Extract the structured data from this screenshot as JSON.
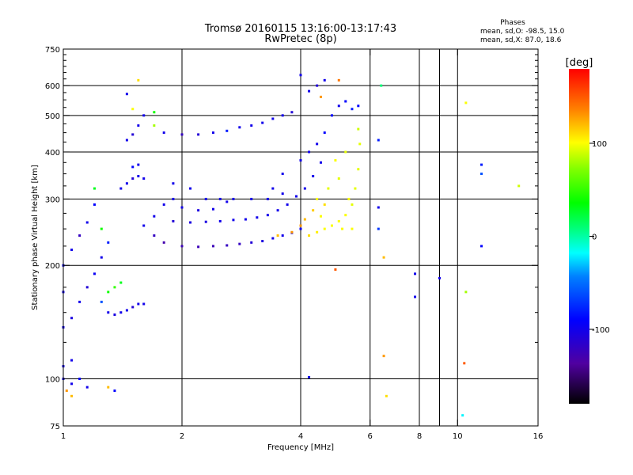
{
  "title": {
    "line1": "Tromsø 20160115 13:16:00-13:17:43",
    "line2": "RwPretec (8p)"
  },
  "stats": {
    "heading": "Phases",
    "o_line": "mean, sd,O: -98.5, 15.0",
    "x_line": "mean, sd,X:  87.0, 18.6"
  },
  "colorbar": {
    "unit": "[deg]",
    "ticks": [
      {
        "value": 100,
        "label": "100"
      },
      {
        "value": 0,
        "label": "0"
      },
      {
        "value": -100,
        "label": "-100"
      }
    ],
    "range": [
      -180,
      180
    ]
  },
  "chart_data": {
    "type": "scatter",
    "title": "Tromsø 20160115 13:16:00-13:17:43",
    "subtitle": "RwPretec (8p)",
    "xlabel": "Frequency [MHz]",
    "ylabel": "Stationary phase Virtual Height [km]",
    "xscale": "log",
    "yscale": "log",
    "xlim": [
      1,
      16
    ],
    "ylim": [
      75,
      750
    ],
    "grid": true,
    "xticks": [
      {
        "value": 1,
        "label": "1"
      },
      {
        "value": 2,
        "label": "2"
      },
      {
        "value": 4,
        "label": "4"
      },
      {
        "value": 6,
        "label": "6"
      },
      {
        "value": 8,
        "label": "8"
      },
      {
        "value": 10,
        "label": "10"
      },
      {
        "value": 16,
        "label": "16"
      }
    ],
    "xgrid": [
      2,
      4,
      6,
      8,
      10
    ],
    "xminor": [
      9
    ],
    "yticks": [
      {
        "value": 75,
        "label": "75"
      },
      {
        "value": 100,
        "label": "100"
      },
      {
        "value": 200,
        "label": "200"
      },
      {
        "value": 300,
        "label": "300"
      },
      {
        "value": 400,
        "label": "400"
      },
      {
        "value": 500,
        "label": "500"
      },
      {
        "value": 600,
        "label": "600"
      },
      {
        "value": 750,
        "label": "750"
      }
    ],
    "ygrid": [
      100,
      200,
      300,
      400,
      500,
      600
    ],
    "yminor": [
      125,
      150,
      175,
      225,
      250,
      275,
      325,
      350,
      375,
      425,
      450,
      475,
      525,
      550,
      575,
      625,
      650,
      675,
      700,
      725
    ],
    "color_scale": "phase [deg]",
    "series": [
      {
        "x": 1.0,
        "y": 137,
        "phase": -100
      },
      {
        "x": 1.05,
        "y": 145,
        "phase": -105
      },
      {
        "x": 1.1,
        "y": 160,
        "phase": -100
      },
      {
        "x": 1.15,
        "y": 175,
        "phase": -110
      },
      {
        "x": 1.2,
        "y": 190,
        "phase": -95
      },
      {
        "x": 1.25,
        "y": 210,
        "phase": -100
      },
      {
        "x": 1.0,
        "y": 170,
        "phase": -100
      },
      {
        "x": 1.0,
        "y": 200,
        "phase": -95
      },
      {
        "x": 1.05,
        "y": 220,
        "phase": -100
      },
      {
        "x": 1.1,
        "y": 240,
        "phase": -120
      },
      {
        "x": 1.15,
        "y": 260,
        "phase": -100
      },
      {
        "x": 1.2,
        "y": 290,
        "phase": -90
      },
      {
        "x": 1.25,
        "y": 160,
        "phase": -60
      },
      {
        "x": 1.3,
        "y": 150,
        "phase": -100
      },
      {
        "x": 1.35,
        "y": 148,
        "phase": -105
      },
      {
        "x": 1.4,
        "y": 150,
        "phase": -100
      },
      {
        "x": 1.45,
        "y": 152,
        "phase": -100
      },
      {
        "x": 1.5,
        "y": 155,
        "phase": -110
      },
      {
        "x": 1.55,
        "y": 158,
        "phase": -100
      },
      {
        "x": 1.6,
        "y": 158,
        "phase": -100
      },
      {
        "x": 1.3,
        "y": 170,
        "phase": 40
      },
      {
        "x": 1.35,
        "y": 175,
        "phase": 50
      },
      {
        "x": 1.4,
        "y": 180,
        "phase": 30
      },
      {
        "x": 1.2,
        "y": 320,
        "phase": 30
      },
      {
        "x": 1.25,
        "y": 250,
        "phase": 40
      },
      {
        "x": 1.3,
        "y": 230,
        "phase": -80
      },
      {
        "x": 1.4,
        "y": 320,
        "phase": -100
      },
      {
        "x": 1.45,
        "y": 330,
        "phase": -100
      },
      {
        "x": 1.5,
        "y": 340,
        "phase": -110
      },
      {
        "x": 1.55,
        "y": 345,
        "phase": -100
      },
      {
        "x": 1.6,
        "y": 340,
        "phase": -100
      },
      {
        "x": 1.5,
        "y": 365,
        "phase": -90
      },
      {
        "x": 1.55,
        "y": 370,
        "phase": -100
      },
      {
        "x": 1.45,
        "y": 430,
        "phase": -100
      },
      {
        "x": 1.5,
        "y": 445,
        "phase": -110
      },
      {
        "x": 1.55,
        "y": 470,
        "phase": -100
      },
      {
        "x": 1.6,
        "y": 500,
        "phase": -100
      },
      {
        "x": 1.7,
        "y": 510,
        "phase": 40
      },
      {
        "x": 1.5,
        "y": 520,
        "phase": 100
      },
      {
        "x": 1.55,
        "y": 620,
        "phase": 110
      },
      {
        "x": 1.45,
        "y": 570,
        "phase": -100
      },
      {
        "x": 1.6,
        "y": 255,
        "phase": -100
      },
      {
        "x": 1.7,
        "y": 240,
        "phase": -120
      },
      {
        "x": 1.8,
        "y": 230,
        "phase": -130
      },
      {
        "x": 2.0,
        "y": 225,
        "phase": -125
      },
      {
        "x": 2.2,
        "y": 224,
        "phase": -125
      },
      {
        "x": 2.4,
        "y": 225,
        "phase": -125
      },
      {
        "x": 2.6,
        "y": 226,
        "phase": -120
      },
      {
        "x": 2.8,
        "y": 228,
        "phase": -120
      },
      {
        "x": 3.0,
        "y": 230,
        "phase": -110
      },
      {
        "x": 3.2,
        "y": 232,
        "phase": -105
      },
      {
        "x": 3.4,
        "y": 236,
        "phase": -100
      },
      {
        "x": 3.6,
        "y": 240,
        "phase": -100
      },
      {
        "x": 3.8,
        "y": 244,
        "phase": -100
      },
      {
        "x": 4.0,
        "y": 250,
        "phase": -100
      },
      {
        "x": 1.7,
        "y": 270,
        "phase": -100
      },
      {
        "x": 1.9,
        "y": 262,
        "phase": -110
      },
      {
        "x": 2.1,
        "y": 260,
        "phase": -105
      },
      {
        "x": 2.3,
        "y": 261,
        "phase": -105
      },
      {
        "x": 2.5,
        "y": 262,
        "phase": -100
      },
      {
        "x": 2.7,
        "y": 264,
        "phase": -100
      },
      {
        "x": 2.9,
        "y": 265,
        "phase": -100
      },
      {
        "x": 3.1,
        "y": 268,
        "phase": -100
      },
      {
        "x": 3.3,
        "y": 272,
        "phase": -100
      },
      {
        "x": 3.5,
        "y": 280,
        "phase": -100
      },
      {
        "x": 3.7,
        "y": 290,
        "phase": -100
      },
      {
        "x": 3.9,
        "y": 305,
        "phase": -100
      },
      {
        "x": 4.1,
        "y": 320,
        "phase": -100
      },
      {
        "x": 4.3,
        "y": 345,
        "phase": -100
      },
      {
        "x": 4.5,
        "y": 375,
        "phase": -100
      },
      {
        "x": 1.8,
        "y": 290,
        "phase": -100
      },
      {
        "x": 2.0,
        "y": 285,
        "phase": -100
      },
      {
        "x": 2.2,
        "y": 280,
        "phase": -105
      },
      {
        "x": 2.4,
        "y": 282,
        "phase": -100
      },
      {
        "x": 2.6,
        "y": 295,
        "phase": -100
      },
      {
        "x": 3.3,
        "y": 300,
        "phase": -100
      },
      {
        "x": 3.6,
        "y": 310,
        "phase": -100
      },
      {
        "x": 4.2,
        "y": 240,
        "phase": 110
      },
      {
        "x": 4.4,
        "y": 245,
        "phase": 105
      },
      {
        "x": 4.6,
        "y": 250,
        "phase": 100
      },
      {
        "x": 4.8,
        "y": 255,
        "phase": 100
      },
      {
        "x": 5.0,
        "y": 262,
        "phase": 100
      },
      {
        "x": 5.2,
        "y": 272,
        "phase": 100
      },
      {
        "x": 5.4,
        "y": 290,
        "phase": 95
      },
      {
        "x": 5.5,
        "y": 320,
        "phase": 95
      },
      {
        "x": 5.6,
        "y": 360,
        "phase": 95
      },
      {
        "x": 5.65,
        "y": 420,
        "phase": 95
      },
      {
        "x": 5.6,
        "y": 460,
        "phase": 90
      },
      {
        "x": 4.4,
        "y": 300,
        "phase": 100
      },
      {
        "x": 4.7,
        "y": 320,
        "phase": 95
      },
      {
        "x": 5.0,
        "y": 340,
        "phase": 95
      },
      {
        "x": 5.2,
        "y": 400,
        "phase": 95
      },
      {
        "x": 4.9,
        "y": 380,
        "phase": 100
      },
      {
        "x": 5.3,
        "y": 300,
        "phase": 100
      },
      {
        "x": 4.6,
        "y": 290,
        "phase": 110
      },
      {
        "x": 4.0,
        "y": 255,
        "phase": 130
      },
      {
        "x": 4.1,
        "y": 265,
        "phase": 120
      },
      {
        "x": 4.3,
        "y": 280,
        "phase": 115
      },
      {
        "x": 4.5,
        "y": 270,
        "phase": 100
      },
      {
        "x": 5.1,
        "y": 250,
        "phase": 100
      },
      {
        "x": 5.4,
        "y": 250,
        "phase": 100
      },
      {
        "x": 3.5,
        "y": 240,
        "phase": 120
      },
      {
        "x": 3.8,
        "y": 245,
        "phase": 130
      },
      {
        "x": 4.4,
        "y": 420,
        "phase": -100
      },
      {
        "x": 4.6,
        "y": 450,
        "phase": -90
      },
      {
        "x": 4.8,
        "y": 500,
        "phase": -90
      },
      {
        "x": 5.0,
        "y": 530,
        "phase": -100
      },
      {
        "x": 5.2,
        "y": 545,
        "phase": -90
      },
      {
        "x": 5.4,
        "y": 520,
        "phase": -80
      },
      {
        "x": 5.6,
        "y": 530,
        "phase": -90
      },
      {
        "x": 4.2,
        "y": 400,
        "phase": -100
      },
      {
        "x": 4.0,
        "y": 380,
        "phase": -100
      },
      {
        "x": 3.6,
        "y": 350,
        "phase": -100
      },
      {
        "x": 3.4,
        "y": 320,
        "phase": -100
      },
      {
        "x": 3.0,
        "y": 300,
        "phase": -100
      },
      {
        "x": 4.2,
        "y": 580,
        "phase": -100
      },
      {
        "x": 4.4,
        "y": 600,
        "phase": -110
      },
      {
        "x": 4.6,
        "y": 620,
        "phase": -100
      },
      {
        "x": 4.0,
        "y": 640,
        "phase": -100
      },
      {
        "x": 4.5,
        "y": 560,
        "phase": 130
      },
      {
        "x": 5.0,
        "y": 620,
        "phase": 140
      },
      {
        "x": 1.8,
        "y": 450,
        "phase": -100
      },
      {
        "x": 2.0,
        "y": 445,
        "phase": -120
      },
      {
        "x": 2.2,
        "y": 445,
        "phase": -110
      },
      {
        "x": 2.4,
        "y": 450,
        "phase": -100
      },
      {
        "x": 2.6,
        "y": 455,
        "phase": -80
      },
      {
        "x": 2.8,
        "y": 465,
        "phase": -100
      },
      {
        "x": 3.0,
        "y": 470,
        "phase": -100
      },
      {
        "x": 3.2,
        "y": 478,
        "phase": -100
      },
      {
        "x": 3.4,
        "y": 490,
        "phase": -100
      },
      {
        "x": 3.6,
        "y": 500,
        "phase": -100
      },
      {
        "x": 3.8,
        "y": 510,
        "phase": -110
      },
      {
        "x": 1.7,
        "y": 470,
        "phase": 80
      },
      {
        "x": 1.9,
        "y": 300,
        "phase": -100
      },
      {
        "x": 2.1,
        "y": 320,
        "phase": -100
      },
      {
        "x": 2.3,
        "y": 300,
        "phase": -100
      },
      {
        "x": 2.5,
        "y": 300,
        "phase": -100
      },
      {
        "x": 2.7,
        "y": 300,
        "phase": -100
      },
      {
        "x": 1.9,
        "y": 330,
        "phase": -100
      },
      {
        "x": 6.4,
        "y": 600,
        "phase": 10
      },
      {
        "x": 6.3,
        "y": 430,
        "phase": -80
      },
      {
        "x": 6.3,
        "y": 285,
        "phase": -100
      },
      {
        "x": 6.3,
        "y": 250,
        "phase": -70
      },
      {
        "x": 6.5,
        "y": 210,
        "phase": 120
      },
      {
        "x": 6.5,
        "y": 115,
        "phase": 130
      },
      {
        "x": 6.6,
        "y": 90,
        "phase": 110
      },
      {
        "x": 7.8,
        "y": 190,
        "phase": -100
      },
      {
        "x": 7.8,
        "y": 165,
        "phase": -100
      },
      {
        "x": 9.0,
        "y": 185,
        "phase": -100
      },
      {
        "x": 10.5,
        "y": 540,
        "phase": 100
      },
      {
        "x": 10.5,
        "y": 170,
        "phase": 80
      },
      {
        "x": 10.4,
        "y": 110,
        "phase": 150
      },
      {
        "x": 10.3,
        "y": 80,
        "phase": -20
      },
      {
        "x": 11.5,
        "y": 370,
        "phase": -80
      },
      {
        "x": 11.5,
        "y": 350,
        "phase": -60
      },
      {
        "x": 11.5,
        "y": 225,
        "phase": -90
      },
      {
        "x": 14.3,
        "y": 325,
        "phase": 90
      },
      {
        "x": 4.9,
        "y": 195,
        "phase": 150
      },
      {
        "x": 4.2,
        "y": 101,
        "phase": -100
      },
      {
        "x": 1.0,
        "y": 100,
        "phase": -100
      },
      {
        "x": 1.05,
        "y": 97,
        "phase": -100
      },
      {
        "x": 1.1,
        "y": 100,
        "phase": -90
      },
      {
        "x": 1.15,
        "y": 95,
        "phase": -100
      },
      {
        "x": 1.0,
        "y": 108,
        "phase": -100
      },
      {
        "x": 1.05,
        "y": 112,
        "phase": -100
      },
      {
        "x": 1.35,
        "y": 93,
        "phase": -90
      },
      {
        "x": 1.3,
        "y": 95,
        "phase": 120
      },
      {
        "x": 1.02,
        "y": 93,
        "phase": 130
      },
      {
        "x": 1.05,
        "y": 90,
        "phase": 120
      }
    ]
  }
}
